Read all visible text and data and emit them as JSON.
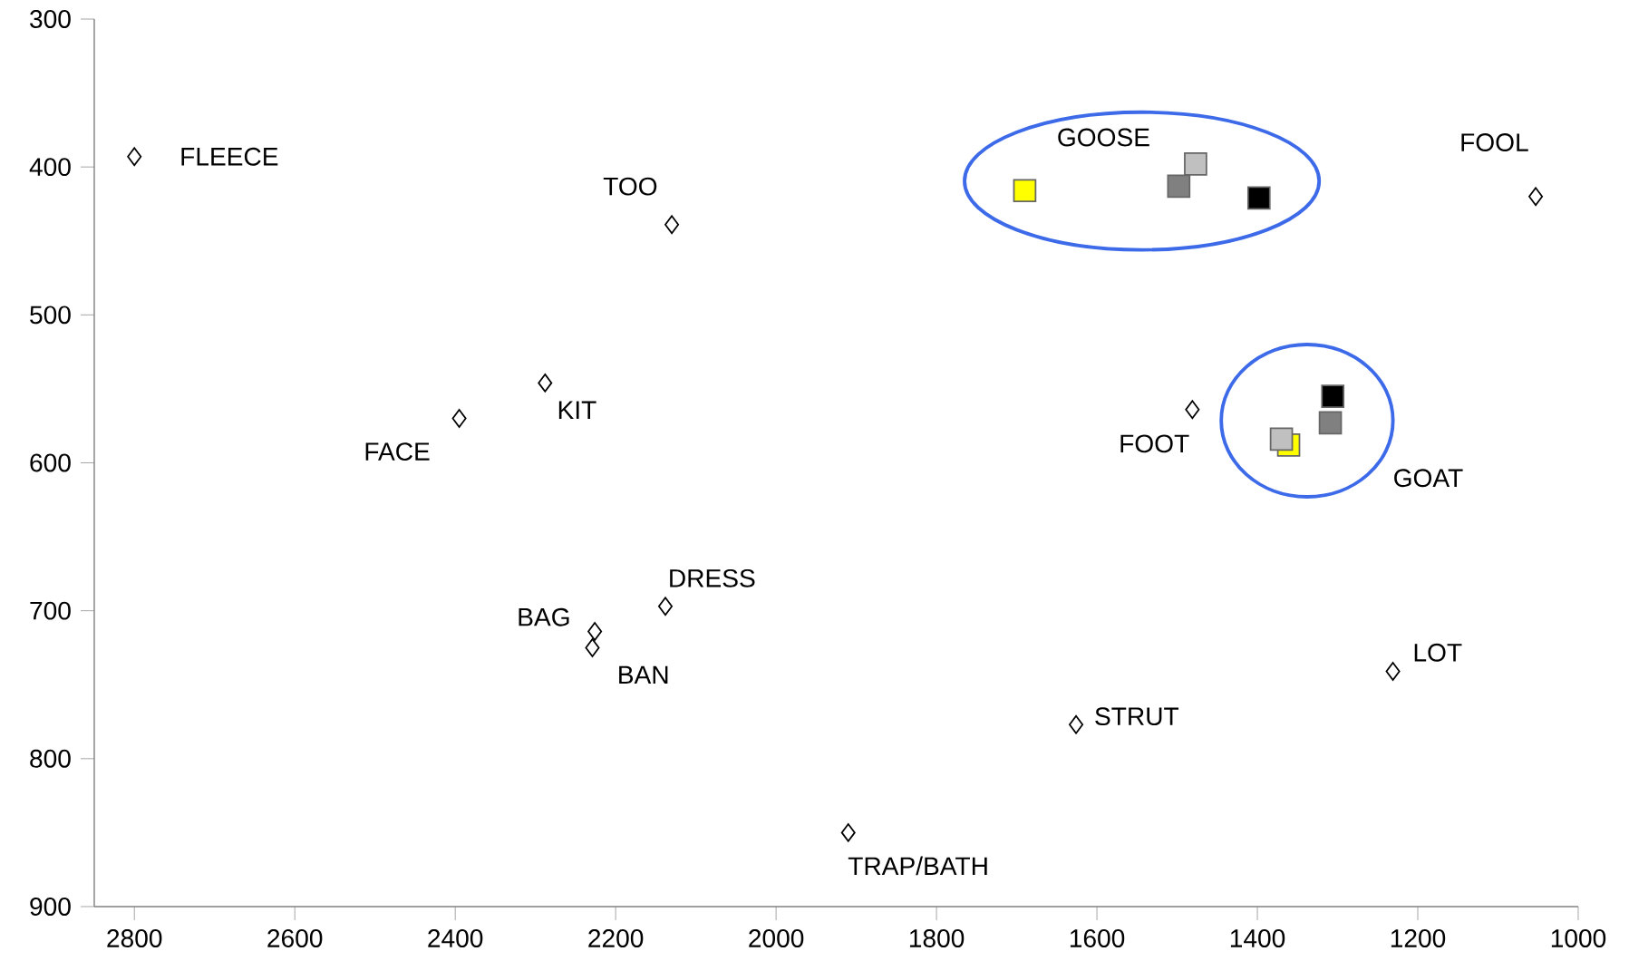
{
  "chart_data": {
    "type": "scatter",
    "xlim": [
      2850,
      1000
    ],
    "ylim": [
      900,
      300
    ],
    "xticks": [
      2800,
      2600,
      2400,
      2200,
      2000,
      1800,
      1600,
      1400,
      1200,
      1000
    ],
    "yticks": [
      300,
      400,
      500,
      600,
      700,
      800,
      900
    ],
    "grid": false,
    "series": [
      {
        "color": "#000000",
        "marker": "diamond",
        "x": [
          2800,
          2130,
          1053,
          2288,
          2395,
          1481,
          2138,
          2226,
          2229,
          1231,
          1626,
          1910
        ],
        "values": [
          393,
          439,
          420,
          546,
          570,
          564,
          697,
          714,
          725,
          741,
          777,
          850
        ]
      },
      {
        "color": "#ffff00",
        "marker": "square",
        "x": [
          1690,
          1361
        ],
        "values": [
          416,
          588
        ]
      },
      {
        "color": "#c0c0c0",
        "marker": "square",
        "x": [
          1477,
          1370
        ],
        "values": [
          398,
          584
        ]
      },
      {
        "color": "#808080",
        "marker": "square",
        "x": [
          1498,
          1309
        ],
        "values": [
          413,
          573
        ]
      },
      {
        "color": "#000000",
        "marker": "square",
        "x": [
          1398,
          1306
        ],
        "values": [
          421,
          555
        ]
      }
    ],
    "annotations": [
      {
        "text": "FLEECE",
        "x": 2800,
        "y": 393
      },
      {
        "text": "TOO",
        "x": 2130,
        "y": 439
      },
      {
        "text": "FOOL",
        "x": 1053,
        "y": 420
      },
      {
        "text": "KIT",
        "x": 2288,
        "y": 546
      },
      {
        "text": "FACE",
        "x": 2395,
        "y": 570
      },
      {
        "text": "FOOT",
        "x": 1481,
        "y": 564
      },
      {
        "text": "DRESS",
        "x": 2138,
        "y": 697
      },
      {
        "text": "BAG",
        "x": 2226,
        "y": 714
      },
      {
        "text": "BAN",
        "x": 2229,
        "y": 725
      },
      {
        "text": "LOT",
        "x": 1231,
        "y": 741
      },
      {
        "text": "STRUT",
        "x": 1626,
        "y": 777
      },
      {
        "text": "TRAP/BATH",
        "x": 1910,
        "y": 850
      },
      "GOOSE",
      "GOAT"
    ]
  }
}
